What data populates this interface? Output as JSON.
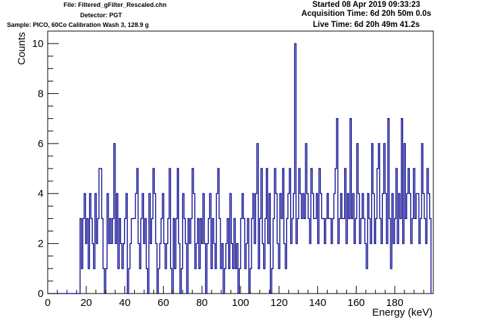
{
  "header": {
    "file": "File: Filtered_gFilter_Rescaled.chn",
    "detector": "Detector: PGT",
    "sample": "Sample: PICO, 60Co Calibration Wash 3, 128.9 g",
    "started": "Started 08 Apr 2019 09:33:23",
    "acquisition": "Acquisition Time: 6d 20h 50m 0.0s",
    "live": "Live Time: 6d 20h 49m 41.2s"
  },
  "colors": {
    "series": "#00008b",
    "axis": "#000000",
    "background": "#ffffff"
  },
  "chart_data": {
    "type": "histogram",
    "title": "",
    "xlabel": "Energy (keV)",
    "ylabel": "Counts",
    "xlim": [
      0,
      200
    ],
    "ylim": [
      0,
      10.5
    ],
    "xticks": [
      0,
      20,
      40,
      60,
      80,
      100,
      120,
      140,
      160,
      180
    ],
    "yticks": [
      0,
      2,
      4,
      6,
      8,
      10
    ],
    "grid": false,
    "legend": "none",
    "bin_width": 0.7,
    "x_start": 0,
    "counts": [
      0,
      0,
      0,
      0,
      0,
      0,
      0,
      0,
      0,
      0,
      0,
      0,
      0,
      0,
      0,
      0,
      0,
      0,
      0,
      0,
      0,
      0,
      0,
      0,
      3,
      1,
      3,
      4,
      2,
      3,
      1,
      4,
      3,
      2,
      1,
      4,
      2,
      3,
      5,
      5,
      3,
      1,
      0,
      1,
      4,
      2,
      3,
      2,
      3,
      6,
      2,
      4,
      1,
      3,
      2,
      1,
      2,
      3,
      4,
      0,
      1,
      2,
      3,
      3,
      3,
      4,
      5,
      2,
      1,
      3,
      4,
      2,
      3,
      1,
      0,
      4,
      2,
      3,
      5,
      4,
      2,
      0,
      1,
      2,
      3,
      4,
      2,
      1,
      2,
      3,
      5,
      1,
      0,
      3,
      1,
      3,
      5,
      2,
      0,
      1,
      4,
      3,
      2,
      0,
      3,
      2,
      3,
      5,
      4,
      1,
      2,
      3,
      1,
      3,
      2,
      4,
      2,
      0,
      2,
      3,
      4,
      1,
      3,
      2,
      1,
      4,
      5,
      3,
      1,
      2,
      0,
      1,
      2,
      3,
      1,
      4,
      2,
      1,
      3,
      1,
      2,
      0,
      1,
      3,
      4,
      3,
      1,
      2,
      3,
      0,
      1,
      3,
      4,
      2,
      4,
      6,
      1,
      3,
      5,
      2,
      1,
      3,
      5,
      2,
      4,
      0,
      1,
      3,
      5,
      4,
      2,
      1,
      4,
      3,
      5,
      2,
      1,
      3,
      4,
      5,
      2,
      3,
      4,
      10,
      2,
      3,
      5,
      4,
      3,
      4,
      3,
      6,
      4,
      3,
      2,
      5,
      4,
      3,
      3,
      4,
      2,
      5,
      4,
      3,
      3,
      2,
      3,
      4,
      3,
      3,
      2,
      3,
      4,
      5,
      7,
      2,
      3,
      4,
      3,
      3,
      5,
      2,
      4,
      3,
      7,
      3,
      4,
      2,
      3,
      6,
      4,
      2,
      3,
      4,
      3,
      2,
      1,
      4,
      3,
      2,
      6,
      4,
      2,
      3,
      5,
      6,
      3,
      2,
      4,
      6,
      4,
      2,
      7,
      3,
      1,
      4,
      2,
      3,
      5,
      2,
      4,
      3,
      7,
      2,
      6,
      3,
      4,
      5,
      4,
      2,
      3,
      5,
      3,
      4,
      4,
      2,
      3,
      6,
      4,
      3,
      2,
      5,
      4,
      3
    ]
  }
}
